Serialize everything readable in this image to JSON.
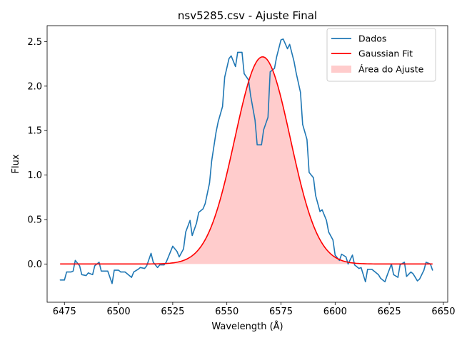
{
  "chart_data": {
    "type": "line",
    "title": "nsv5285.csv - Ajuste Final",
    "xlabel": "Wavelength (Å)",
    "ylabel": "Flux",
    "xlim": [
      6467,
      6652
    ],
    "ylim": [
      -0.43,
      2.68
    ],
    "grid": false,
    "legend_position": "top-right",
    "x_ticks": [
      6475,
      6500,
      6525,
      6550,
      6575,
      6600,
      6625,
      6650
    ],
    "y_ticks": [
      0.0,
      0.5,
      1.0,
      1.5,
      2.0,
      2.5
    ],
    "x_tick_labels": [
      "6475",
      "6500",
      "6525",
      "6550",
      "6575",
      "6600",
      "6625",
      "6650"
    ],
    "y_tick_labels": [
      "0.0",
      "0.5",
      "1.0",
      "1.5",
      "2.0",
      "2.5"
    ],
    "legend": {
      "data_label": "Dados",
      "fit_label": "Gaussian Fit",
      "area_label": "Área do Ajuste"
    },
    "colors": {
      "data": "#1f77b4",
      "fit": "#ff0000",
      "area": "#ffcccc"
    },
    "gaussian_fit": {
      "amplitude": 2.33,
      "center": 6566.5,
      "sigma": 12.8,
      "x_start": 6473,
      "x_end": 6645
    },
    "series": [
      {
        "name": "Dados",
        "x": [
          6473,
          6475,
          6476,
          6478,
          6479,
          6480,
          6482,
          6483,
          6485,
          6486,
          6488,
          6489,
          6491,
          6492,
          6494,
          6495,
          6497,
          6498,
          6500,
          6501,
          6503,
          6504,
          6506,
          6507,
          6509,
          6510,
          6512,
          6513,
          6515,
          6516,
          6518,
          6519,
          6521,
          6522,
          6524,
          6525,
          6527,
          6528,
          6530,
          6531,
          6533,
          6534,
          6536,
          6537,
          6539,
          6540,
          6542,
          6543,
          6545,
          6546,
          6548,
          6549,
          6551,
          6552,
          6554,
          6555,
          6557,
          6558,
          6560,
          6561,
          6563,
          6564,
          6566,
          6567,
          6569,
          6570,
          6572,
          6573,
          6575,
          6576,
          6578,
          6579,
          6581,
          6582,
          6584,
          6585,
          6587,
          6588,
          6590,
          6591,
          6593,
          6594,
          6596,
          6597,
          6599,
          6600,
          6602,
          6603,
          6605,
          6606,
          6608,
          6609,
          6611,
          6612,
          6614,
          6615,
          6617,
          6618,
          6620,
          6621,
          6623,
          6624,
          6626,
          6627,
          6629,
          6630,
          6632,
          6633,
          6635,
          6636,
          6638,
          6639,
          6641,
          6642,
          6644,
          6645
        ],
        "y": [
          -0.18,
          -0.18,
          -0.09,
          -0.09,
          -0.08,
          0.04,
          -0.02,
          -0.12,
          -0.13,
          -0.1,
          -0.12,
          -0.02,
          0.02,
          -0.08,
          -0.08,
          -0.08,
          -0.22,
          -0.07,
          -0.07,
          -0.09,
          -0.09,
          -0.11,
          -0.15,
          -0.09,
          -0.06,
          -0.04,
          -0.05,
          -0.02,
          0.12,
          0.02,
          -0.04,
          -0.01,
          -0.01,
          0.02,
          0.14,
          0.2,
          0.14,
          0.08,
          0.17,
          0.36,
          0.49,
          0.32,
          0.46,
          0.58,
          0.62,
          0.68,
          0.91,
          1.16,
          1.48,
          1.6,
          1.77,
          2.1,
          2.31,
          2.34,
          2.22,
          2.38,
          2.38,
          2.14,
          2.07,
          1.89,
          1.62,
          1.34,
          1.34,
          1.51,
          1.65,
          2.16,
          2.2,
          2.33,
          2.52,
          2.53,
          2.42,
          2.47,
          2.28,
          2.15,
          1.93,
          1.57,
          1.4,
          1.03,
          0.97,
          0.77,
          0.59,
          0.61,
          0.49,
          0.36,
          0.27,
          0.1,
          0.04,
          0.11,
          0.08,
          0.0,
          0.1,
          -0.01,
          -0.05,
          -0.04,
          -0.2,
          -0.06,
          -0.06,
          -0.08,
          -0.12,
          -0.16,
          -0.2,
          -0.13,
          0.0,
          -0.12,
          -0.15,
          -0.01,
          0.02,
          -0.14,
          -0.09,
          -0.11,
          -0.19,
          -0.17,
          -0.07,
          0.02,
          0.0,
          -0.07
        ]
      }
    ]
  }
}
